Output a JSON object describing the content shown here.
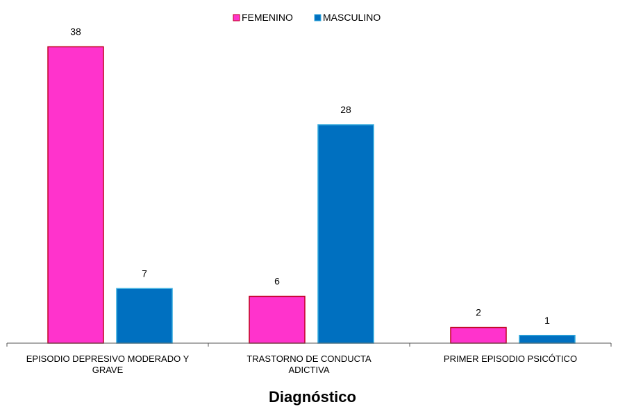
{
  "chart_data": {
    "type": "bar",
    "categories": [
      [
        "EPISODIO DEPRESIVO MODERADO Y",
        "GRAVE"
      ],
      [
        "TRASTORNO DE CONDUCTA",
        "ADICTIVA"
      ],
      [
        "PRIMER EPISODIO PSICÓTICO"
      ]
    ],
    "series": [
      {
        "name": "FEMENINO",
        "values": [
          38,
          6,
          2
        ],
        "color": "#FF33CC",
        "stroke": "#C00020"
      },
      {
        "name": "MASCULINO",
        "values": [
          7,
          28,
          1
        ],
        "color": "#0070C0",
        "stroke": "#33AADD"
      }
    ],
    "xlabel": "Diagnóstico",
    "ylabel": "",
    "ylim": [
      0,
      40
    ],
    "grid": false,
    "legend": "top-center",
    "data_labels": true
  }
}
